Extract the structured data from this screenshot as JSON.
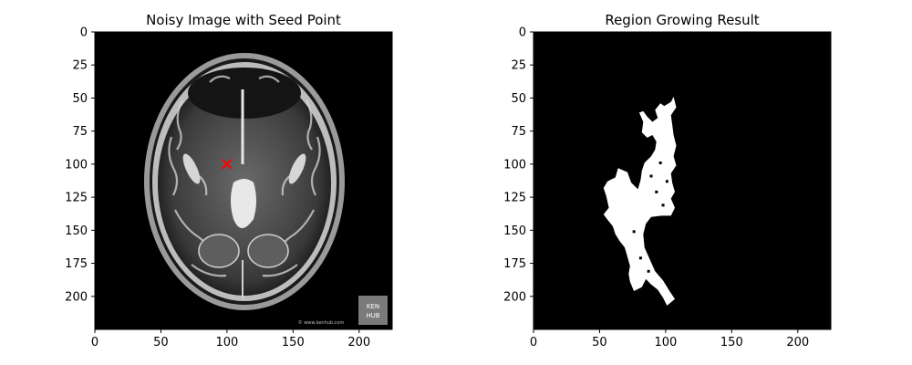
{
  "chart_data": [
    {
      "type": "image",
      "title": "Noisy Image with Seed Point",
      "xlim": [
        0,
        225
      ],
      "ylim": [
        225,
        0
      ],
      "xticks": [
        0,
        50,
        100,
        150,
        200
      ],
      "yticks": [
        0,
        25,
        50,
        75,
        100,
        125,
        150,
        175,
        200
      ],
      "seed_point": {
        "x": 100,
        "y": 100,
        "marker": "x",
        "color": "#ff0000"
      },
      "watermark": {
        "logo": "KEN HUB",
        "url": "© www.kenhub.com"
      }
    },
    {
      "type": "image",
      "title": "Region Growing Result",
      "xlim": [
        0,
        225
      ],
      "ylim": [
        225,
        0
      ],
      "xticks": [
        0,
        50,
        100,
        150,
        200
      ],
      "yticks": [
        0,
        25,
        50,
        75,
        100,
        125,
        150,
        175,
        200
      ],
      "mask_color": "#ffffff",
      "background_color": "#000000",
      "region_outline": [
        [
          106,
          49
        ],
        [
          104,
          53
        ],
        [
          99,
          56
        ],
        [
          96,
          54
        ],
        [
          92,
          59
        ],
        [
          94,
          65
        ],
        [
          90,
          68
        ],
        [
          86,
          64
        ],
        [
          83,
          60
        ],
        [
          80,
          61
        ],
        [
          83,
          68
        ],
        [
          82,
          76
        ],
        [
          86,
          80
        ],
        [
          90,
          78
        ],
        [
          93,
          83
        ],
        [
          92,
          89
        ],
        [
          89,
          94
        ],
        [
          84,
          99
        ],
        [
          82,
          105
        ],
        [
          81,
          112
        ],
        [
          79,
          119
        ],
        [
          74,
          114
        ],
        [
          71,
          106
        ],
        [
          64,
          103
        ],
        [
          62,
          110
        ],
        [
          56,
          113
        ],
        [
          53,
          118
        ],
        [
          55,
          124
        ],
        [
          57,
          133
        ],
        [
          53,
          138
        ],
        [
          56,
          142
        ],
        [
          60,
          147
        ],
        [
          62,
          153
        ],
        [
          65,
          158
        ],
        [
          69,
          163
        ],
        [
          71,
          170
        ],
        [
          73,
          177
        ],
        [
          72,
          183
        ],
        [
          73,
          189
        ],
        [
          76,
          196
        ],
        [
          82,
          193
        ],
        [
          85,
          187
        ],
        [
          89,
          191
        ],
        [
          94,
          195
        ],
        [
          98,
          201
        ],
        [
          101,
          207
        ],
        [
          107,
          202
        ],
        [
          103,
          196
        ],
        [
          98,
          188
        ],
        [
          92,
          181
        ],
        [
          88,
          172
        ],
        [
          84,
          163
        ],
        [
          83,
          153
        ],
        [
          85,
          145
        ],
        [
          89,
          140
        ],
        [
          97,
          139
        ],
        [
          104,
          139
        ],
        [
          107,
          133
        ],
        [
          104,
          126
        ],
        [
          107,
          121
        ],
        [
          105,
          114
        ],
        [
          104,
          107
        ],
        [
          108,
          101
        ],
        [
          106,
          94
        ],
        [
          108,
          86
        ],
        [
          106,
          78
        ],
        [
          105,
          70
        ],
        [
          104,
          63
        ],
        [
          108,
          57
        ]
      ]
    }
  ]
}
